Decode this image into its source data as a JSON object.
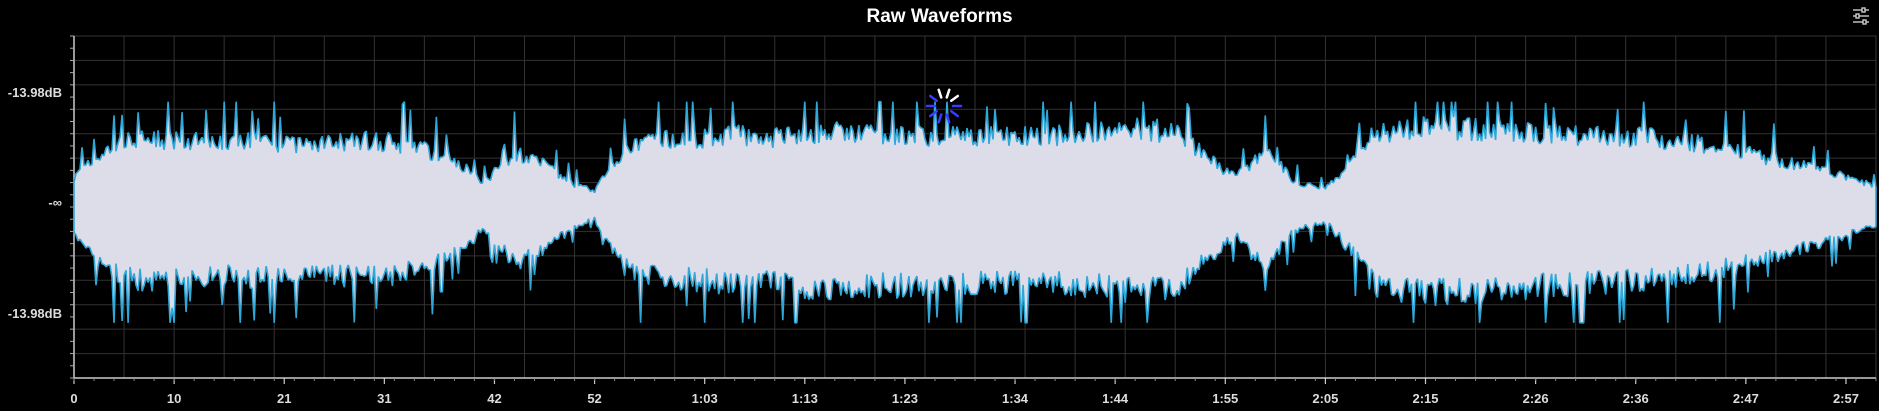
{
  "window": {
    "title": "Raw Waveforms"
  },
  "toolbar": {
    "settings_icon": "sliders-icon"
  },
  "colors": {
    "background": "#000000",
    "fill": "#dcdde8",
    "edge": "#2fa7d9",
    "grid": "#333333"
  },
  "chart_data": {
    "type": "area",
    "title": "Raw Waveforms",
    "ylabel": "",
    "xlabel": "",
    "y_tick_labels": [
      "-13.98dB",
      "-∞",
      "-13.98dB"
    ],
    "x_tick_labels": [
      "0",
      "10",
      "21",
      "31",
      "42",
      "52",
      "1:03",
      "1:13",
      "1:23",
      "1:34",
      "1:44",
      "1:55",
      "2:05",
      "2:15",
      "2:26",
      "2:36",
      "2:47",
      "2:57"
    ],
    "x_tick_seconds": [
      0,
      10,
      21,
      31,
      42,
      52,
      63,
      73,
      83,
      94,
      104,
      115,
      125,
      135,
      146,
      156,
      167,
      177
    ],
    "x_range_seconds": [
      0,
      180
    ],
    "grid": true,
    "envelope_seconds": [
      0,
      3,
      6,
      10,
      14,
      18,
      22,
      26,
      30,
      34,
      38,
      41,
      44,
      47,
      50,
      52,
      55,
      58,
      62,
      66,
      70,
      74,
      78,
      82,
      86,
      90,
      94,
      98,
      102,
      106,
      110,
      113,
      116,
      119,
      122,
      125,
      128,
      130,
      133,
      136,
      140,
      144,
      148,
      152,
      156,
      160,
      164,
      168,
      172,
      176,
      180
    ],
    "envelope_level": [
      0.3,
      0.6,
      0.75,
      0.72,
      0.7,
      0.72,
      0.68,
      0.7,
      0.72,
      0.66,
      0.5,
      0.25,
      0.58,
      0.45,
      0.22,
      0.15,
      0.62,
      0.72,
      0.74,
      0.78,
      0.75,
      0.82,
      0.8,
      0.8,
      0.78,
      0.78,
      0.76,
      0.78,
      0.8,
      0.85,
      0.82,
      0.55,
      0.3,
      0.62,
      0.25,
      0.18,
      0.5,
      0.82,
      0.85,
      0.86,
      0.85,
      0.82,
      0.8,
      0.78,
      0.76,
      0.72,
      0.65,
      0.55,
      0.45,
      0.35,
      0.2
    ]
  }
}
